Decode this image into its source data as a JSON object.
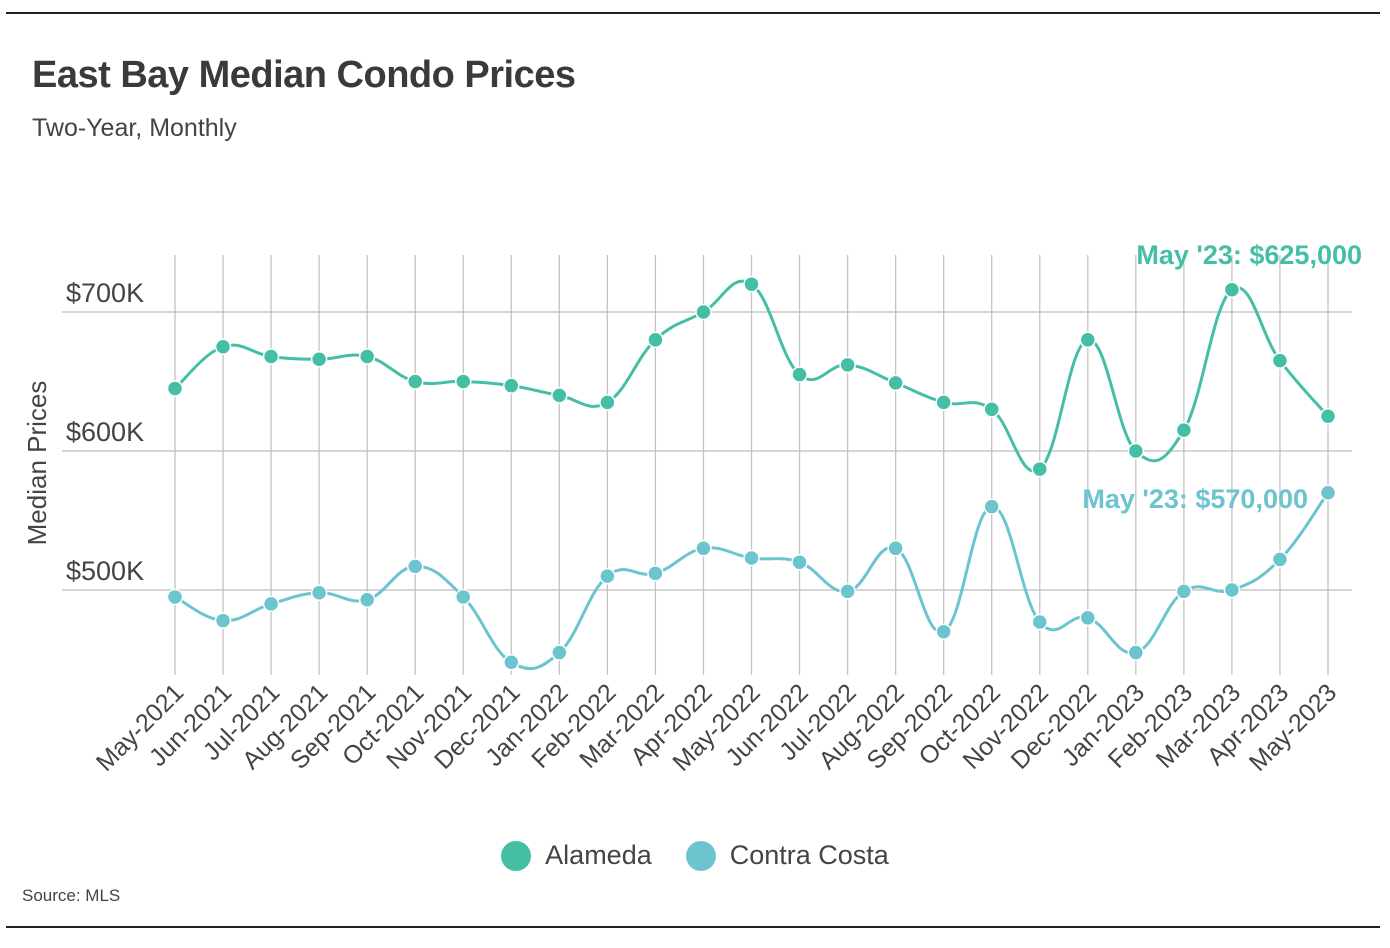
{
  "title": "East Bay Median Condo Prices",
  "subtitle": "Two-Year, Monthly",
  "source": "Source:  MLS",
  "colors": {
    "alameda": "#45bea6",
    "contra_costa": "#6cc4cf",
    "grid": "#bdbdbd"
  },
  "chart_data": {
    "type": "line",
    "title": "East Bay Median Condo Prices",
    "subtitle": "Two-Year, Monthly",
    "xlabel": "",
    "ylabel": "Median Prices",
    "ylim": [
      440000,
      740000
    ],
    "yticks": [
      500000,
      600000,
      700000
    ],
    "ytick_labels": [
      "$500K",
      "$600K",
      "$700K"
    ],
    "categories": [
      "May-2021",
      "Jun-2021",
      "Jul-2021",
      "Aug-2021",
      "Sep-2021",
      "Oct-2021",
      "Nov-2021",
      "Dec-2021",
      "Jan-2022",
      "Feb-2022",
      "Mar-2022",
      "Apr-2022",
      "May-2022",
      "Jun-2022",
      "Jul-2022",
      "Aug-2022",
      "Sep-2022",
      "Oct-2022",
      "Nov-2022",
      "Dec-2022",
      "Jan-2023",
      "Feb-2023",
      "Mar-2023",
      "Apr-2023",
      "May-2023"
    ],
    "series": [
      {
        "name": "Alameda",
        "color": "#45bea6",
        "values": [
          645000,
          675000,
          668000,
          666000,
          668000,
          650000,
          650000,
          647000,
          640000,
          635000,
          680000,
          700000,
          720000,
          655000,
          662000,
          649000,
          635000,
          630000,
          587000,
          680000,
          600000,
          615000,
          716000,
          665000,
          625000
        ]
      },
      {
        "name": "Contra Costa",
        "color": "#6cc4cf",
        "values": [
          495000,
          478000,
          490000,
          498000,
          493000,
          517000,
          495000,
          448000,
          455000,
          510000,
          512000,
          530000,
          523000,
          520000,
          499000,
          530000,
          470000,
          560000,
          477000,
          480000,
          455000,
          499000,
          500000,
          522000,
          570000
        ]
      }
    ],
    "annotations": [
      {
        "series": "Alameda",
        "text": "May '23: $625,000"
      },
      {
        "series": "Contra Costa",
        "text": "May '23: $570,000"
      }
    ],
    "legend": [
      "Alameda",
      "Contra Costa"
    ],
    "legend_position": "bottom-center"
  }
}
